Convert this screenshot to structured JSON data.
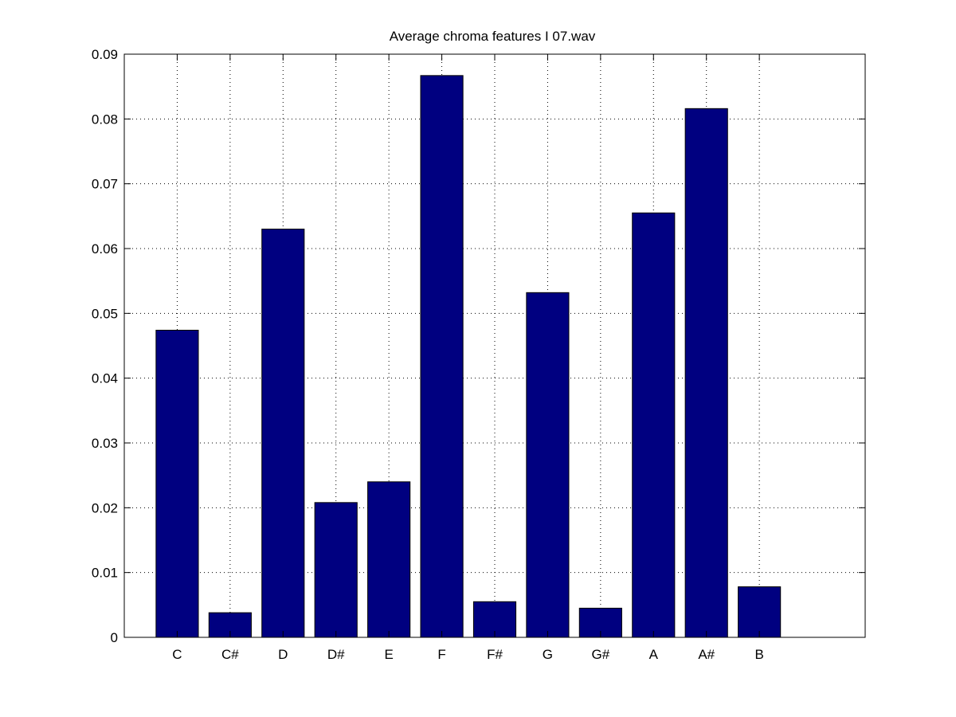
{
  "chart_data": {
    "type": "bar",
    "title": "Average chroma features I 07.wav",
    "xlabel": "",
    "ylabel": "",
    "categories": [
      "C",
      "C#",
      "D",
      "D#",
      "E",
      "F",
      "F#",
      "G",
      "G#",
      "A",
      "A#",
      "B"
    ],
    "values": [
      0.0474,
      0.0038,
      0.063,
      0.0208,
      0.024,
      0.0867,
      0.0055,
      0.0532,
      0.0045,
      0.0655,
      0.0816,
      0.0078
    ],
    "xlim": [
      0,
      14
    ],
    "ylim": [
      0,
      0.09
    ],
    "yticks": [
      "0",
      "0.01",
      "0.02",
      "0.03",
      "0.04",
      "0.05",
      "0.06",
      "0.07",
      "0.08",
      "0.09"
    ],
    "grid": true,
    "bar_color": "#000080"
  }
}
